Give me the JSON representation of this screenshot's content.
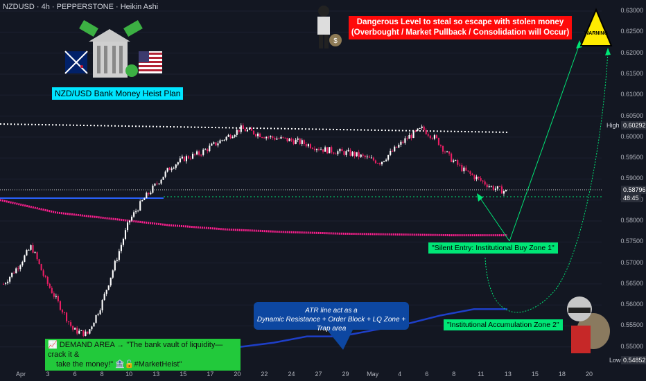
{
  "header": {
    "title": "NZDUSD · 4h · PEPPERSTONE · Heikin Ashi"
  },
  "annotations": {
    "plan_label": "NZD/USD Bank Money Heist Plan",
    "danger_line1": "Dangerous Level to steal so escape with stolen money",
    "danger_line2": "(Overbought / Market Pullback / Consolidation will Occur)",
    "warning_sign": "WARNING",
    "atr_line1": "ATR line act as a",
    "atr_line2": "Dynamic Resistance + Order Block + LQ Zone + Trap area",
    "silent_entry": "\"Silent Entry: Institutional Buy Zone 1\"",
    "accumulation_zone": "\"Institutional Accumulation Zone 2\"",
    "demand_line1": "📈 DEMAND AREA → \"The bank vault of liquidity—crack it &",
    "demand_line2": "take the money!\" 🏦🔓#MarketHeist\""
  },
  "price_tags": {
    "high_label": "High",
    "high_value": "0.60292",
    "current_value": "0.58796",
    "countdown": "48:45",
    "low_label": "Low",
    "low_value": "0.54852"
  },
  "colors": {
    "background": "#131722",
    "bull": "#ffffff",
    "bear": "#e91e63",
    "ema": "#ff1f8f",
    "atr": "#1e3fc8",
    "target_arrow": "#00e676",
    "danger_box": "#ff0a0a",
    "plan_box": "#00e5ff"
  },
  "chart_data": {
    "type": "candlestick",
    "symbol": "NZDUSD",
    "timeframe": "4h",
    "source": "PEPPERSTONE",
    "style": "Heikin Ashi",
    "y_ticks": [
      "0.63000",
      "0.62500",
      "0.62000",
      "0.61500",
      "0.61000",
      "0.60500",
      "0.60000",
      "0.59500",
      "0.59000",
      "0.58500",
      "0.58000",
      "0.57500",
      "0.57000",
      "0.56500",
      "0.56000",
      "0.55500",
      "0.55000"
    ],
    "x_ticks": [
      "Apr",
      "3",
      "6",
      "8",
      "10",
      "13",
      "15",
      "17",
      "20",
      "22",
      "24",
      "27",
      "29",
      "May",
      "4",
      "6",
      "8",
      "11",
      "13",
      "15",
      "18",
      "20"
    ],
    "ylim": [
      0.5465,
      0.631
    ],
    "high": 0.60292,
    "low": 0.54852,
    "current": 0.58796,
    "close_path": [
      0.565,
      0.569,
      0.574,
      0.566,
      0.56,
      0.554,
      0.553,
      0.56,
      0.57,
      0.58,
      0.585,
      0.589,
      0.593,
      0.595,
      0.596,
      0.598,
      0.6,
      0.602,
      0.601,
      0.6,
      0.5995,
      0.599,
      0.598,
      0.597,
      0.5965,
      0.596,
      0.595,
      0.594,
      0.597,
      0.6,
      0.602,
      0.5995,
      0.595,
      0.592,
      0.59,
      0.588,
      0.587
    ],
    "ema_path": [
      0.585,
      0.582,
      0.5805,
      0.579,
      0.578,
      0.5774,
      0.577,
      0.5768,
      0.5766,
      0.5766
    ],
    "atr_path": [
      0.55,
      0.55,
      0.55,
      0.551,
      0.5525,
      0.5525,
      0.554,
      0.5555,
      0.5575,
      0.559,
      0.559
    ],
    "target_level": 0.622,
    "resistance_level": 0.6015,
    "support_level": 0.5855
  }
}
